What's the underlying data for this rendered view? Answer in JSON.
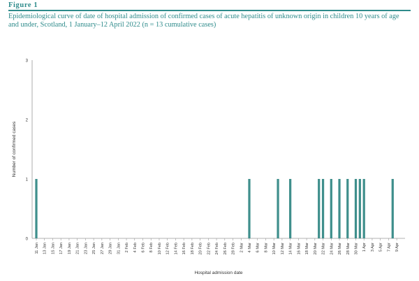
{
  "figure": {
    "label": "Figure 1",
    "caption": "Epidemiological curve of date of hospital admission of confirmed cases of acute hepatitis of unknown origin in children 10 years of age and under, Scotland, 1 January–12 April 2022 (n = 13 cumulative cases)"
  },
  "colors": {
    "accent": "#2e8b8b",
    "bar": "#3f8f8c",
    "axis": "#999999"
  },
  "chart_data": {
    "type": "bar",
    "title": "",
    "xlabel": "Hospital admission date",
    "ylabel": "Number of confirmed cases",
    "ylim": [
      0,
      3
    ],
    "yticks": [
      0,
      1,
      2,
      3
    ],
    "grid": false,
    "legend": "none",
    "x_start": "2022-01-11",
    "x_end": "2022-04-10",
    "xtick_labels": [
      "11 Jan",
      "13 Jan",
      "15 Jan",
      "17 Jan",
      "19 Jan",
      "21 Jan",
      "23 Jan",
      "25 Jan",
      "27 Jan",
      "29 Jan",
      "31 Jan",
      "2 Feb",
      "4 Feb",
      "6 Feb",
      "8 Feb",
      "10 Feb",
      "12 Feb",
      "14 Feb",
      "16 Feb",
      "18 Feb",
      "20 Feb",
      "22 Feb",
      "24 Feb",
      "26 Feb",
      "28 Feb",
      "2 Mar",
      "4 Mar",
      "6 Mar",
      "8 Mar",
      "10 Mar",
      "12 Mar",
      "14 Mar",
      "16 Mar",
      "18 Mar",
      "20 Mar",
      "22 Mar",
      "24 Mar",
      "26 Mar",
      "28 Mar",
      "30 Mar",
      "1 Apr",
      "3 Apr",
      "5 Apr",
      "7 Apr",
      "9 Apr"
    ],
    "bars": [
      {
        "date": "2022-01-11",
        "value": 1
      },
      {
        "date": "2022-03-04",
        "value": 1
      },
      {
        "date": "2022-03-11",
        "value": 1
      },
      {
        "date": "2022-03-14",
        "value": 1
      },
      {
        "date": "2022-03-21",
        "value": 1
      },
      {
        "date": "2022-03-22",
        "value": 1
      },
      {
        "date": "2022-03-24",
        "value": 1
      },
      {
        "date": "2022-03-26",
        "value": 1
      },
      {
        "date": "2022-03-28",
        "value": 1
      },
      {
        "date": "2022-03-30",
        "value": 1
      },
      {
        "date": "2022-03-31",
        "value": 1
      },
      {
        "date": "2022-04-01",
        "value": 1
      },
      {
        "date": "2022-04-08",
        "value": 1
      }
    ]
  }
}
